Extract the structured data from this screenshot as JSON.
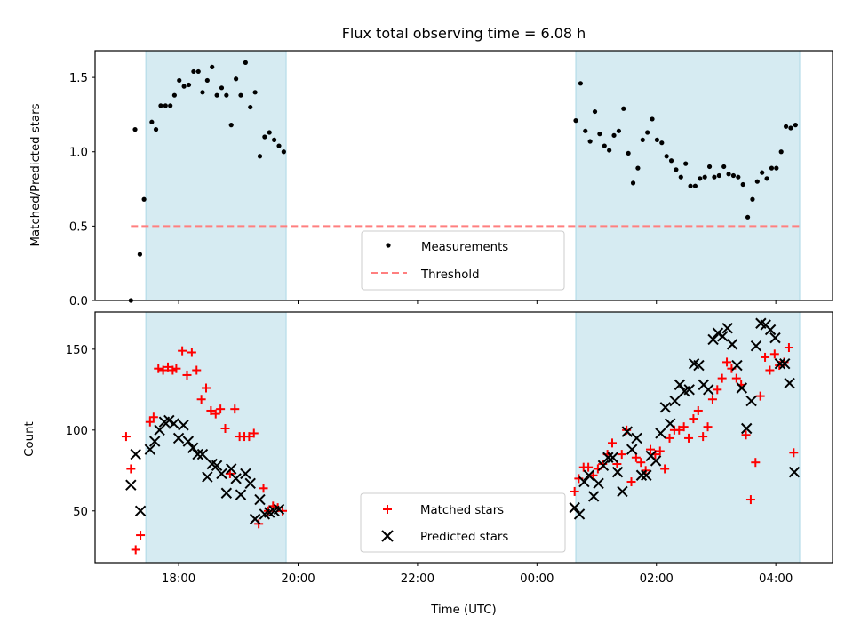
{
  "title": "Flux total observing time = 6.08 h",
  "chart_data": [
    {
      "type": "scatter",
      "ylabel": "Matched/Predicted stars",
      "xlabel": "",
      "x_unit": "hours from 00:00 UTC of first day",
      "ylim": [
        0.0,
        1.68
      ],
      "yticks": [
        0.0,
        0.5,
        1.0,
        1.5
      ],
      "xlim": [
        16.6,
        28.95
      ],
      "shaded_intervals": [
        [
          17.45,
          19.8
        ],
        [
          24.65,
          28.4
        ]
      ],
      "legend": {
        "position": "lower center",
        "entries": [
          "Measurements",
          "Threshold"
        ]
      },
      "threshold": {
        "name": "Threshold",
        "value": 0.5,
        "x": [
          17.2,
          28.4
        ],
        "color": "#ff7f7f"
      },
      "series": [
        {
          "name": "Measurements",
          "color": "#000000",
          "x": [
            17.2,
            17.27,
            17.35,
            17.42,
            17.55,
            17.62,
            17.7,
            17.78,
            17.86,
            17.93,
            18.01,
            18.09,
            18.17,
            18.25,
            18.33,
            18.4,
            18.48,
            18.56,
            18.64,
            18.72,
            18.8,
            18.88,
            18.96,
            19.04,
            19.12,
            19.2,
            19.28,
            19.36,
            19.44,
            19.52,
            19.6,
            19.68,
            19.76,
            24.65,
            24.73,
            24.81,
            24.89,
            24.97,
            25.05,
            25.13,
            25.21,
            25.29,
            25.37,
            25.45,
            25.53,
            25.61,
            25.69,
            25.77,
            25.85,
            25.93,
            26.01,
            26.09,
            26.17,
            26.25,
            26.33,
            26.41,
            26.49,
            26.57,
            26.65,
            26.73,
            26.81,
            26.89,
            26.97,
            27.05,
            27.13,
            27.21,
            27.29,
            27.37,
            27.45,
            27.53,
            27.61,
            27.69,
            27.77,
            27.85,
            27.93,
            28.01,
            28.09,
            28.17,
            28.25,
            28.33
          ],
          "y": [
            0.0,
            1.15,
            0.31,
            0.68,
            1.2,
            1.15,
            1.31,
            1.31,
            1.31,
            1.38,
            1.48,
            1.44,
            1.45,
            1.54,
            1.54,
            1.4,
            1.48,
            1.57,
            1.38,
            1.43,
            1.38,
            1.18,
            1.49,
            1.38,
            1.6,
            1.3,
            1.4,
            0.97,
            1.1,
            1.13,
            1.08,
            1.04,
            1.0,
            1.21,
            1.46,
            1.14,
            1.07,
            1.27,
            1.12,
            1.04,
            1.01,
            1.11,
            1.14,
            1.29,
            0.99,
            0.79,
            0.89,
            1.08,
            1.13,
            1.22,
            1.08,
            1.06,
            0.97,
            0.94,
            0.88,
            0.83,
            0.92,
            0.77,
            0.77,
            0.82,
            0.83,
            0.9,
            0.83,
            0.84,
            0.9,
            0.85,
            0.84,
            0.83,
            0.78,
            0.56,
            0.68,
            0.8,
            0.86,
            0.82,
            0.89,
            0.89,
            1.0,
            1.17,
            1.16,
            1.18
          ]
        }
      ]
    },
    {
      "type": "scatter",
      "ylabel": "Count",
      "xlabel": "Time (UTC)",
      "x_unit": "hours from 00:00 UTC of first day",
      "ylim": [
        18,
        173
      ],
      "yticks": [
        50,
        100,
        150
      ],
      "xlim": [
        16.6,
        28.95
      ],
      "xticks": [
        18,
        20,
        22,
        24,
        26,
        28
      ],
      "xticklabels": [
        "18:00",
        "20:00",
        "22:00",
        "00:00",
        "02:00",
        "04:00"
      ],
      "shaded_intervals": [
        [
          17.45,
          19.8
        ],
        [
          24.65,
          28.4
        ]
      ],
      "legend": {
        "position": "lower center",
        "entries": [
          "Matched stars",
          "Predicted stars"
        ]
      },
      "series": [
        {
          "name": "Matched stars",
          "marker": "+",
          "color": "#ff0000",
          "x": [
            17.12,
            17.2,
            17.28,
            17.36,
            17.52,
            17.58,
            17.66,
            17.74,
            17.82,
            17.9,
            17.96,
            18.06,
            18.14,
            18.22,
            18.3,
            18.38,
            18.46,
            18.54,
            18.62,
            18.7,
            18.78,
            18.86,
            18.94,
            19.02,
            19.1,
            19.18,
            19.26,
            19.34,
            19.42,
            19.5,
            19.58,
            19.66,
            19.74,
            24.63,
            24.7,
            24.78,
            24.86,
            24.94,
            25.02,
            25.1,
            25.18,
            25.26,
            25.34,
            25.42,
            25.5,
            25.58,
            25.66,
            25.74,
            25.82,
            25.9,
            25.98,
            26.06,
            26.14,
            26.22,
            26.3,
            26.38,
            26.46,
            26.54,
            26.62,
            26.7,
            26.78,
            26.86,
            26.94,
            27.02,
            27.1,
            27.18,
            27.26,
            27.34,
            27.42,
            27.5,
            27.58,
            27.66,
            27.74,
            27.82,
            27.9,
            27.98,
            28.06,
            28.14,
            28.22,
            28.3
          ],
          "y": [
            96,
            76,
            26,
            35,
            105,
            108,
            138,
            137,
            139,
            137,
            138,
            149,
            134,
            148,
            137,
            119,
            126,
            112,
            110,
            113,
            101,
            73,
            113,
            96,
            96,
            96,
            98,
            42,
            64,
            50,
            53,
            52,
            50,
            62,
            70,
            77,
            77,
            72,
            76,
            79,
            85,
            92,
            79,
            85,
            100,
            68,
            83,
            80,
            75,
            88,
            85,
            87,
            76,
            95,
            100,
            100,
            102,
            95,
            107,
            112,
            96,
            102,
            119,
            125,
            132,
            142,
            138,
            132,
            128,
            97,
            57,
            80,
            121,
            145,
            137,
            147,
            140,
            142,
            151,
            86
          ]
        },
        {
          "name": "Predicted stars",
          "marker": "x",
          "color": "#000000",
          "x": [
            17.2,
            17.28,
            17.36,
            17.52,
            17.6,
            17.68,
            17.76,
            17.84,
            17.92,
            18.0,
            18.08,
            18.16,
            18.24,
            18.32,
            18.4,
            18.48,
            18.56,
            18.64,
            18.72,
            18.8,
            18.88,
            18.96,
            19.04,
            19.12,
            19.2,
            19.28,
            19.36,
            19.44,
            19.52,
            19.6,
            19.68,
            24.63,
            24.71,
            24.79,
            24.87,
            24.95,
            25.03,
            25.11,
            25.19,
            25.27,
            25.35,
            25.43,
            25.51,
            25.59,
            25.67,
            25.75,
            25.83,
            25.91,
            25.99,
            26.07,
            26.15,
            26.23,
            26.31,
            26.39,
            26.47,
            26.55,
            26.63,
            26.71,
            26.79,
            26.87,
            26.95,
            27.03,
            27.11,
            27.19,
            27.27,
            27.35,
            27.43,
            27.51,
            27.59,
            27.67,
            27.75,
            27.83,
            27.91,
            27.99,
            28.07,
            28.15,
            28.23,
            28.31
          ],
          "y": [
            66,
            85,
            50,
            88,
            93,
            100,
            105,
            106,
            104,
            95,
            103,
            93,
            89,
            85,
            85,
            71,
            79,
            78,
            73,
            61,
            76,
            70,
            60,
            73,
            67,
            45,
            57,
            48,
            49,
            50,
            51,
            52,
            48,
            68,
            72,
            59,
            67,
            78,
            83,
            83,
            74,
            62,
            99,
            88,
            95,
            72,
            72,
            84,
            81,
            98,
            114,
            104,
            118,
            128,
            124,
            125,
            141,
            140,
            128,
            125,
            156,
            160,
            158,
            163,
            153,
            140,
            126,
            101,
            118,
            152,
            166,
            165,
            162,
            157,
            141,
            141,
            129,
            74
          ]
        }
      ]
    }
  ]
}
